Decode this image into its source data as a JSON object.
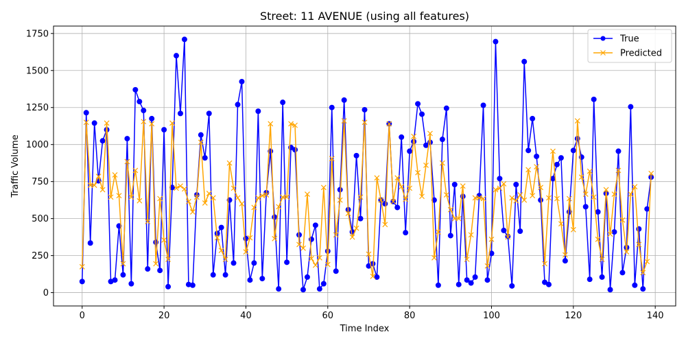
{
  "chart_data": {
    "type": "line",
    "title": "Street: 11 AVENUE (using all features)",
    "xlabel": "Time Index",
    "ylabel": "Traffic Volume",
    "xlim": [
      -7,
      145
    ],
    "ylim": [
      -90,
      1800
    ],
    "xticks": [
      0,
      20,
      40,
      60,
      80,
      100,
      120,
      140
    ],
    "yticks": [
      0,
      250,
      500,
      750,
      1000,
      1250,
      1500,
      1750
    ],
    "grid": true,
    "legend_position": "top-right",
    "series": [
      {
        "name": "True",
        "color": "#0000ff",
        "marker": "circle",
        "values": [
          75,
          1215,
          335,
          1145,
          755,
          1025,
          1100,
          75,
          85,
          450,
          120,
          1040,
          60,
          1370,
          1290,
          1230,
          160,
          1175,
          340,
          150,
          1100,
          40,
          710,
          1600,
          1210,
          1710,
          55,
          50,
          660,
          1065,
          910,
          1210,
          120,
          400,
          440,
          120,
          625,
          200,
          1270,
          1425,
          365,
          85,
          200,
          1225,
          95,
          675,
          955,
          510,
          25,
          1285,
          205,
          980,
          965,
          390,
          20,
          105,
          360,
          455,
          25,
          60,
          280,
          1250,
          145,
          695,
          1300,
          560,
          410,
          925,
          500,
          1235,
          180,
          195,
          105,
          625,
          600,
          1140,
          615,
          575,
          1050,
          405,
          955,
          1020,
          1275,
          1205,
          995,
          1015,
          625,
          50,
          1035,
          1245,
          385,
          730,
          55,
          650,
          85,
          65,
          105,
          655,
          1265,
          85,
          265,
          1695,
          770,
          420,
          380,
          45,
          730,
          415,
          1560,
          960,
          1175,
          920,
          625,
          70,
          55,
          770,
          865,
          910,
          215,
          545,
          960,
          1040,
          915,
          580,
          90,
          1305,
          545,
          105,
          670,
          20,
          410,
          955,
          135,
          305,
          1255,
          50,
          430,
          25,
          565,
          780
        ]
      },
      {
        "name": "Predicted",
        "color": "#ffa500",
        "marker": "x",
        "values": [
          175,
          1150,
          725,
          725,
          785,
          695,
          1145,
          645,
          795,
          655,
          195,
          885,
          645,
          825,
          620,
          1155,
          480,
          1140,
          195,
          635,
          355,
          225,
          1145,
          705,
          720,
          700,
          615,
          545,
          645,
          1015,
          605,
          670,
          640,
          370,
          285,
          225,
          875,
          705,
          640,
          600,
          275,
          370,
          575,
          640,
          655,
          660,
          1140,
          365,
          580,
          645,
          645,
          1140,
          1130,
          325,
          300,
          665,
          230,
          185,
          235,
          710,
          190,
          905,
          390,
          625,
          1160,
          535,
          375,
          435,
          645,
          1150,
          260,
          110,
          775,
          625,
          460,
          1140,
          615,
          775,
          715,
          630,
          705,
          1055,
          810,
          650,
          860,
          1075,
          235,
          410,
          875,
          660,
          560,
          500,
          500,
          720,
          225,
          390,
          640,
          640,
          635,
          180,
          360,
          695,
          705,
          735,
          375,
          640,
          620,
          660,
          625,
          830,
          655,
          850,
          710,
          195,
          640,
          955,
          635,
          465,
          255,
          635,
          425,
          1160,
          780,
          665,
          820,
          645,
          360,
          225,
          695,
          395,
          665,
          825,
          490,
          275,
          665,
          715,
          325,
          135,
          210,
          805
        ]
      }
    ]
  }
}
